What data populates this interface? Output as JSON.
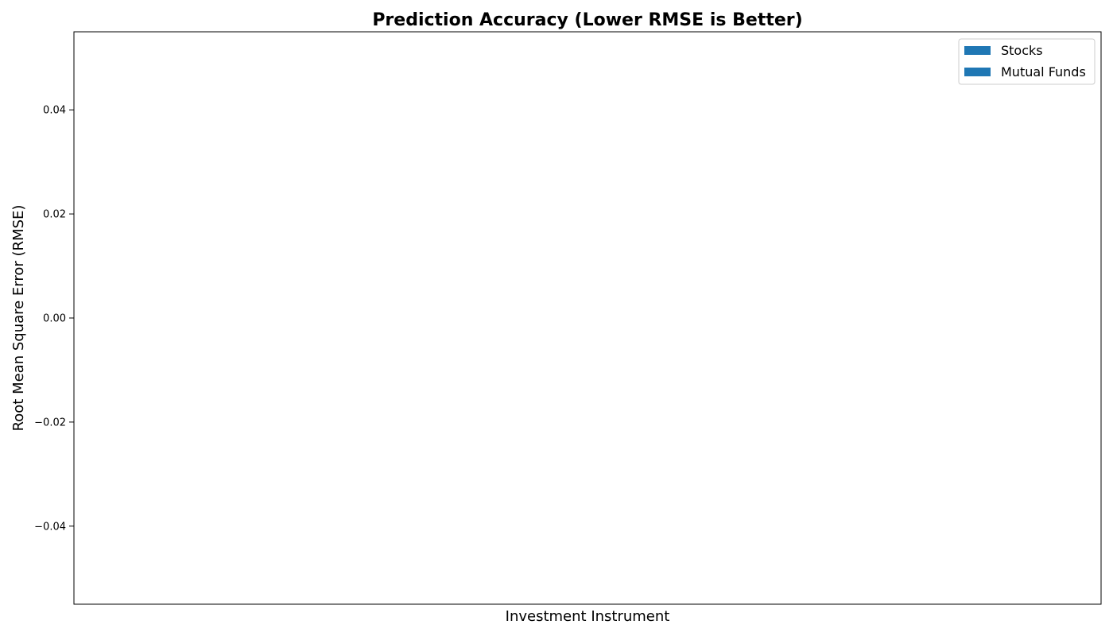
{
  "chart_data": {
    "type": "bar",
    "title": "Prediction Accuracy (Lower RMSE is Better)",
    "xlabel": "Investment Instrument",
    "ylabel": "Root Mean Square Error (RMSE)",
    "categories": [],
    "series": [
      {
        "name": "Stocks",
        "values": [],
        "color": "#1f77b4"
      },
      {
        "name": "Mutual Funds",
        "values": [],
        "color": "#1f77b4"
      }
    ],
    "ylim": [
      -0.055,
      0.055
    ],
    "yticks": [
      0.04,
      0.02,
      0.0,
      -0.02,
      -0.04
    ],
    "ytick_labels": [
      "0.04",
      "0.02",
      "0.00",
      "−0.02",
      "−0.04"
    ],
    "grid": false,
    "legend_position": "top-right"
  }
}
